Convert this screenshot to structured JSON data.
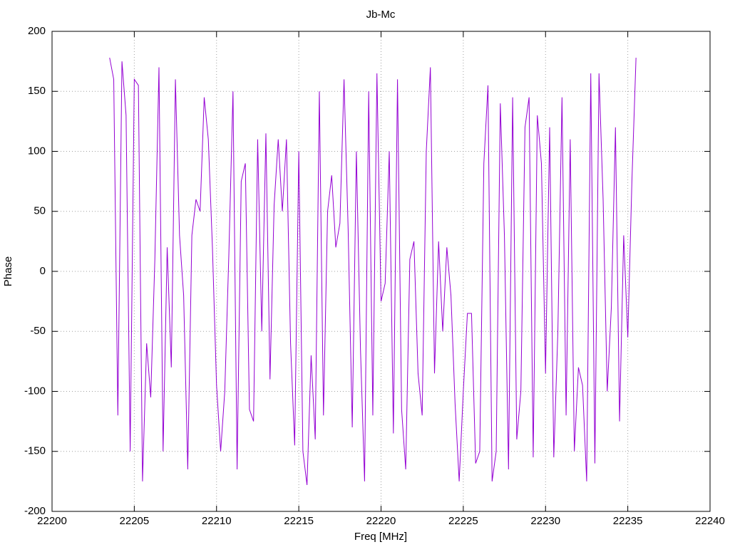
{
  "chart_data": {
    "type": "line",
    "title": "Jb-Mc",
    "x_label": "Freq [MHz]",
    "y_label": "Phase",
    "xlim": [
      22200,
      22240
    ],
    "xticks": [
      22200,
      22205,
      22210,
      22215,
      22220,
      22225,
      22230,
      22235,
      22240
    ],
    "ylim": [
      -200,
      200
    ],
    "yticks": [
      -200,
      -150,
      -100,
      -50,
      0,
      50,
      100,
      150,
      200
    ],
    "grid": true,
    "series": [
      {
        "color": "#9400d3",
        "x": [
          22203.5,
          22203.75,
          22204,
          22204.25,
          22204.5,
          22204.75,
          22205,
          22205.25,
          22205.5,
          22205.75,
          22206,
          22206.25,
          22206.5,
          22206.75,
          22207,
          22207.25,
          22207.5,
          22207.75,
          22208,
          22208.25,
          22208.5,
          22208.75,
          22209,
          22209.25,
          22209.5,
          22209.75,
          22210,
          22210.25,
          22210.5,
          22210.75,
          22211,
          22211.25,
          22211.5,
          22211.75,
          22212,
          22212.25,
          22212.5,
          22212.75,
          22213,
          22213.25,
          22213.5,
          22213.75,
          22214,
          22214.25,
          22214.5,
          22214.75,
          22215,
          22215.25,
          22215.5,
          22215.75,
          22216,
          22216.25,
          22216.5,
          22216.75,
          22217,
          22217.25,
          22217.5,
          22217.75,
          22218,
          22218.25,
          22218.5,
          22218.75,
          22219,
          22219.25,
          22219.5,
          22219.75,
          22220,
          22220.25,
          22220.5,
          22220.75,
          22221,
          22221.25,
          22221.5,
          22221.75,
          22222,
          22222.25,
          22222.5,
          22222.75,
          22223,
          22223.25,
          22223.5,
          22223.75,
          22224,
          22224.25,
          22224.5,
          22224.75,
          22225,
          22225.25,
          22225.5,
          22225.75,
          22226,
          22226.25,
          22226.5,
          22226.75,
          22227,
          22227.25,
          22227.5,
          22227.75,
          22228,
          22228.25,
          22228.5,
          22228.75,
          22229,
          22229.25,
          22229.5,
          22229.75,
          22230,
          22230.25,
          22230.5,
          22230.75,
          22231,
          22231.25,
          22231.5,
          22231.75,
          22232,
          22232.25,
          22232.5,
          22232.75,
          22233,
          22233.25,
          22233.5,
          22233.75,
          22234,
          22234.25,
          22234.5,
          22234.75,
          22235,
          22235.25,
          22235.5
        ],
        "values": [
          178,
          160,
          -120,
          175,
          130,
          -150,
          160,
          155,
          -175,
          -60,
          -105,
          10,
          170,
          -150,
          20,
          -80,
          160,
          30,
          -20,
          -165,
          30,
          60,
          50,
          145,
          110,
          20,
          -95,
          -150,
          -100,
          15,
          150,
          -165,
          75,
          90,
          -115,
          -125,
          110,
          -50,
          115,
          -90,
          55,
          110,
          50,
          110,
          -60,
          -145,
          100,
          -150,
          -178,
          -70,
          -140,
          150,
          -120,
          50,
          80,
          20,
          40,
          160,
          35,
          -130,
          100,
          -65,
          -175,
          150,
          -120,
          165,
          -25,
          -10,
          100,
          -135,
          160,
          -115,
          -165,
          10,
          25,
          -85,
          -120,
          100,
          170,
          -85,
          25,
          -50,
          20,
          -20,
          -110,
          -175,
          -100,
          -35,
          -35,
          -160,
          -150,
          90,
          155,
          -175,
          -150,
          140,
          30,
          -165,
          145,
          -140,
          -100,
          120,
          145,
          -155,
          130,
          90,
          -85,
          120,
          -155,
          -50,
          145,
          -120,
          110,
          -150,
          -80,
          -95,
          -175,
          165,
          -160,
          165,
          60,
          -100,
          -30,
          120,
          -125,
          30,
          -55,
          75,
          178
        ]
      }
    ]
  }
}
